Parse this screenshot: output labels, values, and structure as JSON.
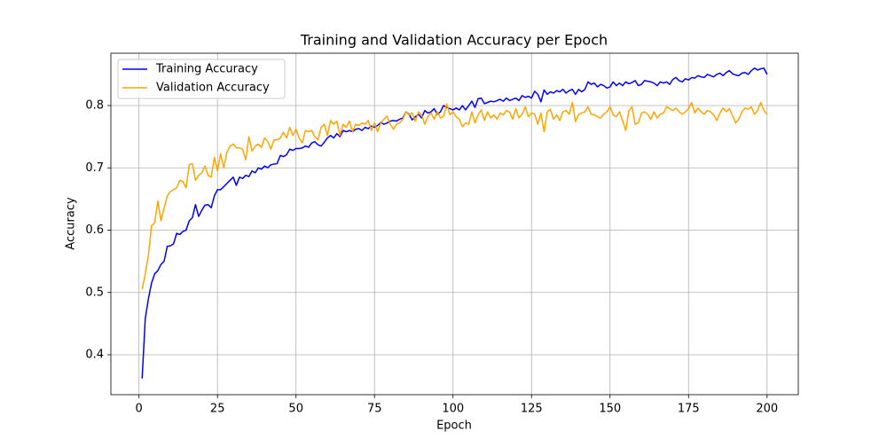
{
  "chart_data": {
    "type": "line",
    "title": "Training and Validation Accuracy per Epoch",
    "x_label": "Epoch",
    "y_label": "Accuracy",
    "x": [
      1,
      2,
      3,
      4,
      5,
      6,
      7,
      8,
      9,
      10,
      11,
      12,
      13,
      14,
      15,
      16,
      17,
      18,
      19,
      20,
      21,
      22,
      23,
      24,
      25,
      26,
      27,
      28,
      29,
      30,
      31,
      32,
      33,
      34,
      35,
      36,
      37,
      38,
      39,
      40,
      41,
      42,
      43,
      44,
      45,
      46,
      47,
      48,
      49,
      50,
      51,
      52,
      53,
      54,
      55,
      56,
      57,
      58,
      59,
      60,
      61,
      62,
      63,
      64,
      65,
      66,
      67,
      68,
      69,
      70,
      71,
      72,
      73,
      74,
      75,
      76,
      77,
      78,
      79,
      80,
      81,
      82,
      83,
      84,
      85,
      86,
      87,
      88,
      89,
      90,
      91,
      92,
      93,
      94,
      95,
      96,
      97,
      98,
      99,
      100,
      101,
      102,
      103,
      104,
      105,
      106,
      107,
      108,
      109,
      110,
      111,
      112,
      113,
      114,
      115,
      116,
      117,
      118,
      119,
      120,
      121,
      122,
      123,
      124,
      125,
      126,
      127,
      128,
      129,
      130,
      131,
      132,
      133,
      134,
      135,
      136,
      137,
      138,
      139,
      140,
      141,
      142,
      143,
      144,
      145,
      146,
      147,
      148,
      149,
      150,
      151,
      152,
      153,
      154,
      155,
      156,
      157,
      158,
      159,
      160,
      161,
      162,
      163,
      164,
      165,
      166,
      167,
      168,
      169,
      170,
      171,
      172,
      173,
      174,
      175,
      176,
      177,
      178,
      179,
      180,
      181,
      182,
      183,
      184,
      185,
      186,
      187,
      188,
      189,
      190,
      191,
      192,
      193,
      194,
      195,
      196,
      197,
      198,
      199,
      200
    ],
    "series": [
      {
        "name": "Training Accuracy",
        "color": "#0000ff",
        "values": [
          0.362,
          0.458,
          0.49,
          0.515,
          0.53,
          0.535,
          0.545,
          0.55,
          0.574,
          0.575,
          0.578,
          0.595,
          0.593,
          0.598,
          0.6,
          0.615,
          0.62,
          0.641,
          0.622,
          0.632,
          0.64,
          0.641,
          0.636,
          0.655,
          0.665,
          0.665,
          0.67,
          0.675,
          0.68,
          0.685,
          0.672,
          0.685,
          0.683,
          0.688,
          0.686,
          0.695,
          0.692,
          0.7,
          0.698,
          0.703,
          0.7,
          0.705,
          0.706,
          0.707,
          0.72,
          0.718,
          0.721,
          0.73,
          0.728,
          0.731,
          0.731,
          0.732,
          0.735,
          0.733,
          0.74,
          0.742,
          0.737,
          0.735,
          0.741,
          0.748,
          0.752,
          0.748,
          0.755,
          0.75,
          0.76,
          0.758,
          0.76,
          0.758,
          0.762,
          0.763,
          0.76,
          0.765,
          0.763,
          0.767,
          0.765,
          0.768,
          0.773,
          0.77,
          0.772,
          0.775,
          0.776,
          0.775,
          0.778,
          0.78,
          0.79,
          0.786,
          0.777,
          0.782,
          0.786,
          0.78,
          0.792,
          0.788,
          0.79,
          0.795,
          0.786,
          0.79,
          0.8,
          0.797,
          0.795,
          0.793,
          0.796,
          0.793,
          0.8,
          0.793,
          0.8,
          0.807,
          0.797,
          0.811,
          0.812,
          0.803,
          0.805,
          0.807,
          0.806,
          0.808,
          0.81,
          0.807,
          0.812,
          0.808,
          0.81,
          0.812,
          0.808,
          0.816,
          0.813,
          0.815,
          0.812,
          0.823,
          0.818,
          0.806,
          0.825,
          0.818,
          0.822,
          0.82,
          0.824,
          0.822,
          0.826,
          0.82,
          0.824,
          0.826,
          0.818,
          0.826,
          0.822,
          0.826,
          0.838,
          0.834,
          0.836,
          0.83,
          0.834,
          0.832,
          0.828,
          0.83,
          0.838,
          0.832,
          0.836,
          0.832,
          0.838,
          0.835,
          0.837,
          0.84,
          0.832,
          0.834,
          0.84,
          0.839,
          0.838,
          0.836,
          0.832,
          0.838,
          0.836,
          0.838,
          0.834,
          0.842,
          0.845,
          0.84,
          0.838,
          0.843,
          0.841,
          0.845,
          0.844,
          0.848,
          0.846,
          0.845,
          0.85,
          0.848,
          0.846,
          0.85,
          0.852,
          0.848,
          0.853,
          0.856,
          0.851,
          0.849,
          0.848,
          0.852,
          0.853,
          0.85,
          0.856,
          0.86,
          0.857,
          0.859,
          0.86,
          0.85
        ]
      },
      {
        "name": "Validation Accuracy",
        "color": "#ffa500",
        "values": [
          0.505,
          0.53,
          0.56,
          0.607,
          0.612,
          0.647,
          0.615,
          0.635,
          0.655,
          0.662,
          0.665,
          0.668,
          0.68,
          0.678,
          0.668,
          0.705,
          0.707,
          0.68,
          0.688,
          0.692,
          0.703,
          0.688,
          0.685,
          0.717,
          0.695,
          0.723,
          0.7,
          0.725,
          0.735,
          0.738,
          0.732,
          0.732,
          0.73,
          0.713,
          0.75,
          0.727,
          0.735,
          0.738,
          0.733,
          0.748,
          0.742,
          0.73,
          0.745,
          0.745,
          0.748,
          0.757,
          0.748,
          0.765,
          0.752,
          0.762,
          0.748,
          0.74,
          0.76,
          0.758,
          0.76,
          0.75,
          0.745,
          0.765,
          0.77,
          0.752,
          0.776,
          0.77,
          0.775,
          0.752,
          0.77,
          0.765,
          0.775,
          0.758,
          0.77,
          0.768,
          0.772,
          0.77,
          0.776,
          0.76,
          0.772,
          0.758,
          0.772,
          0.778,
          0.783,
          0.77,
          0.762,
          0.77,
          0.772,
          0.778,
          0.79,
          0.785,
          0.788,
          0.775,
          0.79,
          0.785,
          0.77,
          0.783,
          0.788,
          0.778,
          0.79,
          0.78,
          0.783,
          0.803,
          0.785,
          0.79,
          0.782,
          0.778,
          0.766,
          0.772,
          0.77,
          0.79,
          0.772,
          0.785,
          0.793,
          0.776,
          0.79,
          0.78,
          0.785,
          0.778,
          0.788,
          0.785,
          0.792,
          0.79,
          0.778,
          0.795,
          0.78,
          0.786,
          0.798,
          0.782,
          0.788,
          0.786,
          0.77,
          0.788,
          0.758,
          0.79,
          0.794,
          0.778,
          0.785,
          0.776,
          0.79,
          0.792,
          0.786,
          0.805,
          0.774,
          0.786,
          0.788,
          0.79,
          0.798,
          0.786,
          0.785,
          0.782,
          0.78,
          0.786,
          0.79,
          0.798,
          0.785,
          0.782,
          0.79,
          0.776,
          0.76,
          0.792,
          0.798,
          0.77,
          0.772,
          0.788,
          0.79,
          0.786,
          0.778,
          0.79,
          0.78,
          0.786,
          0.788,
          0.798,
          0.795,
          0.792,
          0.796,
          0.79,
          0.786,
          0.79,
          0.795,
          0.805,
          0.788,
          0.796,
          0.79,
          0.786,
          0.792,
          0.79,
          0.785,
          0.776,
          0.788,
          0.796,
          0.79,
          0.795,
          0.784,
          0.772,
          0.778,
          0.79,
          0.796,
          0.794,
          0.798,
          0.786,
          0.792,
          0.805,
          0.792,
          0.786
        ]
      }
    ],
    "xlim": [
      -8.95,
      209.95
    ],
    "ylim": [
      0.336,
      0.884
    ],
    "xticks": [
      0,
      25,
      50,
      75,
      100,
      125,
      150,
      175,
      200
    ],
    "yticks": [
      0.4,
      0.5,
      0.6,
      0.7,
      0.8
    ],
    "grid": true,
    "legend": "upper left"
  }
}
